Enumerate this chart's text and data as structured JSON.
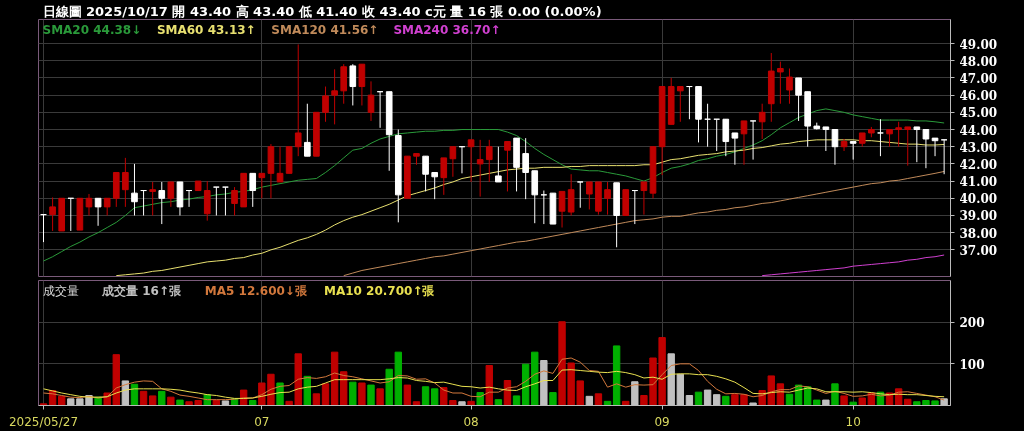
{
  "chart_data": [
    {
      "type": "candlestick",
      "title": "日線圖 2025/10/17 開 43.40 高 43.40 低 41.40 收 43.40 c元 量 16 張 0.00 (0.00%)",
      "categories": [
        "2025/05/27",
        null,
        null,
        null,
        null,
        null,
        null,
        null,
        null,
        null,
        null,
        null,
        null,
        null,
        null,
        null,
        null,
        null,
        null,
        null,
        null,
        null,
        null,
        null,
        "07",
        null,
        null,
        null,
        null,
        null,
        null,
        null,
        null,
        null,
        null,
        null,
        null,
        null,
        null,
        null,
        null,
        null,
        null,
        null,
        null,
        null,
        null,
        "08",
        null,
        null,
        null,
        null,
        null,
        null,
        null,
        null,
        null,
        null,
        null,
        null,
        null,
        null,
        null,
        null,
        null,
        null,
        null,
        null,
        "09",
        null,
        null,
        null,
        null,
        null,
        null,
        null,
        null,
        null,
        null,
        null,
        null,
        null,
        null,
        null,
        null,
        null,
        null,
        null,
        null,
        "10",
        null,
        null,
        null,
        null,
        null,
        null,
        null,
        null,
        null,
        null
      ],
      "ohlc": [
        [
          39.05,
          39.05,
          37.45,
          39.05
        ],
        [
          39.05,
          40.05,
          38.1,
          39.5
        ],
        [
          38.1,
          40.0,
          38.1,
          40.0
        ],
        [
          40.0,
          40.0,
          38.1,
          40.0
        ],
        [
          38.15,
          40.0,
          38.15,
          40.0
        ],
        [
          39.5,
          40.25,
          39.0,
          40.0
        ],
        [
          40.0,
          40.0,
          38.4,
          39.5
        ],
        [
          39.5,
          40.0,
          39.0,
          40.0
        ],
        [
          40.0,
          41.5,
          39.5,
          41.5
        ],
        [
          40.5,
          42.35,
          39.5,
          41.5
        ],
        [
          40.3,
          42.0,
          39.0,
          39.8
        ],
        [
          40.45,
          40.45,
          39.0,
          40.45
        ],
        [
          40.4,
          40.95,
          39.0,
          40.5
        ],
        [
          40.45,
          40.95,
          38.5,
          40.0
        ],
        [
          40.0,
          40.95,
          39.5,
          40.95
        ],
        [
          40.95,
          40.95,
          39.0,
          39.5
        ],
        [
          40.45,
          40.45,
          39.5,
          40.45
        ],
        [
          40.45,
          41.0,
          40.45,
          41.0
        ],
        [
          39.1,
          41.0,
          38.7,
          40.45
        ],
        [
          40.65,
          40.65,
          39.0,
          40.65
        ],
        [
          40.65,
          40.65,
          39.0,
          40.65
        ],
        [
          39.7,
          40.65,
          39.0,
          40.45
        ],
        [
          39.5,
          41.45,
          39.5,
          41.45
        ],
        [
          41.45,
          41.45,
          39.5,
          40.45
        ],
        [
          41.2,
          41.45,
          40.0,
          41.45
        ],
        [
          41.45,
          43.15,
          40.0,
          43.0
        ],
        [
          40.95,
          43.0,
          40.95,
          41.45
        ],
        [
          41.45,
          43.0,
          41.45,
          43.0
        ],
        [
          43.0,
          48.95,
          42.45,
          43.8
        ],
        [
          43.25,
          45.5,
          42.45,
          42.45
        ],
        [
          42.45,
          45.0,
          42.45,
          45.0
        ],
        [
          45.0,
          46.5,
          44.45,
          45.95
        ],
        [
          46.0,
          47.5,
          44.3,
          46.25
        ],
        [
          46.25,
          47.8,
          45.5,
          47.65
        ],
        [
          47.7,
          47.8,
          45.4,
          46.5
        ],
        [
          46.5,
          47.8,
          45.4,
          47.8
        ],
        [
          45.0,
          46.8,
          44.5,
          46.0
        ],
        [
          46.2,
          46.2,
          44.1,
          46.2
        ],
        [
          46.2,
          46.2,
          41.6,
          43.7
        ],
        [
          43.65,
          44.0,
          38.6,
          40.2
        ],
        [
          40.0,
          42.45,
          40.0,
          42.45
        ],
        [
          42.45,
          42.6,
          41.95,
          42.6
        ],
        [
          42.45,
          42.45,
          40.4,
          41.4
        ],
        [
          41.5,
          41.5,
          39.95,
          41.25
        ],
        [
          41.2,
          42.35,
          40.2,
          42.35
        ],
        [
          42.3,
          43.0,
          41.25,
          43.0
        ],
        [
          43.0,
          43.0,
          41.45,
          43.0
        ],
        [
          43.0,
          43.4,
          40.95,
          43.4
        ],
        [
          42.0,
          43.4,
          40.1,
          42.25
        ],
        [
          42.25,
          43.4,
          40.95,
          43.0
        ],
        [
          41.3,
          43.0,
          40.95,
          40.95
        ],
        [
          42.8,
          43.3,
          40.4,
          43.3
        ],
        [
          43.5,
          43.5,
          40.4,
          41.8
        ],
        [
          42.6,
          43.5,
          39.95,
          41.5
        ],
        [
          41.6,
          41.6,
          38.55,
          40.2
        ],
        [
          40.2,
          40.45,
          38.5,
          40.2
        ],
        [
          40.3,
          40.3,
          38.5,
          38.5
        ],
        [
          39.25,
          40.4,
          38.3,
          40.4
        ],
        [
          39.2,
          41.4,
          39.0,
          40.5
        ],
        [
          40.95,
          40.95,
          39.45,
          40.95
        ],
        [
          40.25,
          40.95,
          39.35,
          40.95
        ],
        [
          39.25,
          40.95,
          39.05,
          40.95
        ],
        [
          40.0,
          40.95,
          39.05,
          40.5
        ],
        [
          40.9,
          40.9,
          37.15,
          39.0
        ],
        [
          39.0,
          40.5,
          39.0,
          40.5
        ],
        [
          40.45,
          40.45,
          38.5,
          40.45
        ],
        [
          40.45,
          40.95,
          39.05,
          40.95
        ],
        [
          40.3,
          43.0,
          40.0,
          43.0
        ],
        [
          43.0,
          46.5,
          41.35,
          46.5
        ],
        [
          44.3,
          47.0,
          44.3,
          46.5
        ],
        [
          46.25,
          46.5,
          44.45,
          46.5
        ],
        [
          46.5,
          46.5,
          44.6,
          46.5
        ],
        [
          46.5,
          46.5,
          43.25,
          44.6
        ],
        [
          44.6,
          45.5,
          43.0,
          44.6
        ],
        [
          44.6,
          44.6,
          42.75,
          44.6
        ],
        [
          44.6,
          44.6,
          42.45,
          43.3
        ],
        [
          43.8,
          43.8,
          41.95,
          43.5
        ],
        [
          43.75,
          44.5,
          41.95,
          44.5
        ],
        [
          44.5,
          44.5,
          42.25,
          44.5
        ],
        [
          44.45,
          45.5,
          43.45,
          45.0
        ],
        [
          45.5,
          48.45,
          44.45,
          47.4
        ],
        [
          47.35,
          47.95,
          45.5,
          47.55
        ],
        [
          46.3,
          47.55,
          45.5,
          47.05
        ],
        [
          47.0,
          47.0,
          44.5,
          46.0
        ],
        [
          46.2,
          46.2,
          43.0,
          44.2
        ],
        [
          44.2,
          44.4,
          44.0,
          44.05
        ],
        [
          44.15,
          44.15,
          42.75,
          44.0
        ],
        [
          44.0,
          44.0,
          41.95,
          43.0
        ],
        [
          43.0,
          43.45,
          42.75,
          43.3
        ],
        [
          43.3,
          43.3,
          42.25,
          43.2
        ],
        [
          43.2,
          43.8,
          43.0,
          43.8
        ],
        [
          43.8,
          44.15,
          43.55,
          44.0
        ],
        [
          43.8,
          44.6,
          42.45,
          43.8
        ],
        [
          43.75,
          44.0,
          43.0,
          44.0
        ],
        [
          44.0,
          44.45,
          43.0,
          44.1
        ],
        [
          44.0,
          44.15,
          41.9,
          44.15
        ],
        [
          44.15,
          44.15,
          42.1,
          44.0
        ],
        [
          44.0,
          44.0,
          41.75,
          43.45
        ],
        [
          43.5,
          43.5,
          42.45,
          43.35
        ],
        [
          43.4,
          43.4,
          41.4,
          43.4
        ]
      ],
      "colors": [
        "#ffffff",
        "#c00000",
        "#c00000",
        "#ffffff",
        "#c00000",
        "#c00000",
        "#ffffff",
        "#c00000",
        "#c00000",
        "#c00000",
        "#ffffff",
        "#ffffff",
        "#c00000",
        "#ffffff",
        "#c00000",
        "#ffffff",
        "#ffffff",
        "#c00000",
        "#c00000",
        "#ffffff",
        "#ffffff",
        "#c00000",
        "#c00000",
        "#ffffff",
        "#c00000",
        "#c00000",
        "#c00000",
        "#c00000",
        "#c00000",
        "#ffffff",
        "#c00000",
        "#c00000",
        "#c00000",
        "#c00000",
        "#ffffff",
        "#c00000",
        "#c00000",
        "#ffffff",
        "#ffffff",
        "#ffffff",
        "#c00000",
        "#c00000",
        "#ffffff",
        "#ffffff",
        "#c00000",
        "#c00000",
        "#ffffff",
        "#c00000",
        "#c00000",
        "#c00000",
        "#ffffff",
        "#c00000",
        "#ffffff",
        "#ffffff",
        "#ffffff",
        "#ffffff",
        "#ffffff",
        "#c00000",
        "#c00000",
        "#ffffff",
        "#c00000",
        "#c00000",
        "#c00000",
        "#ffffff",
        "#c00000",
        "#ffffff",
        "#c00000",
        "#c00000",
        "#c00000",
        "#c00000",
        "#c00000",
        "#ffffff",
        "#ffffff",
        "#ffffff",
        "#ffffff",
        "#ffffff",
        "#ffffff",
        "#c00000",
        "#ffffff",
        "#c00000",
        "#c00000",
        "#c00000",
        "#c00000",
        "#ffffff",
        "#ffffff",
        "#ffffff",
        "#ffffff",
        "#ffffff",
        "#c00000",
        "#ffffff",
        "#c00000",
        "#c00000",
        "#ffffff",
        "#c00000",
        "#c00000",
        "#c00000",
        "#ffffff",
        "#ffffff",
        "#ffffff",
        "#ffffff"
      ],
      "series": [
        {
          "name": "SMA20 44.38↓",
          "type": "line",
          "color": "#2a9a3a",
          "values": [
            36.35,
            36.6,
            36.9,
            37.2,
            37.45,
            37.75,
            38.0,
            38.3,
            38.6,
            39.0,
            39.45,
            39.55,
            39.65,
            39.75,
            39.8,
            39.9,
            39.95,
            40.05,
            40.1,
            40.2,
            40.25,
            40.35,
            40.4,
            40.5,
            40.65,
            40.75,
            40.85,
            40.95,
            41.05,
            41.1,
            41.15,
            41.5,
            41.9,
            42.35,
            42.8,
            42.9,
            43.2,
            43.45,
            43.6,
            43.75,
            43.8,
            43.85,
            43.9,
            43.9,
            43.95,
            43.95,
            44.0,
            44.0,
            44.0,
            44.0,
            44.0,
            43.85,
            43.65,
            43.3,
            42.9,
            42.55,
            42.25,
            41.95,
            41.7,
            41.65,
            41.6,
            41.6,
            41.5,
            41.4,
            41.3,
            41.15,
            41.0,
            41.2,
            41.5,
            41.75,
            41.85,
            42.0,
            42.2,
            42.3,
            42.45,
            42.55,
            42.7,
            42.9,
            43.1,
            43.35,
            43.7,
            44.1,
            44.4,
            44.7,
            44.9,
            45.1,
            45.2,
            45.1,
            45.0,
            44.85,
            44.75,
            44.65,
            44.55,
            44.55,
            44.55,
            44.55,
            44.5,
            44.5,
            44.45,
            44.38
          ]
        },
        {
          "name": "SMA60 43.13↑",
          "type": "line",
          "color": "#e8e070",
          "values": [
            null,
            null,
            null,
            null,
            null,
            null,
            null,
            null,
            35.5,
            35.55,
            35.6,
            35.65,
            35.75,
            35.8,
            35.9,
            36.0,
            36.1,
            36.2,
            36.3,
            36.35,
            36.4,
            36.5,
            36.55,
            36.7,
            36.8,
            37.0,
            37.15,
            37.35,
            37.55,
            37.7,
            37.9,
            38.15,
            38.45,
            38.7,
            38.9,
            39.05,
            39.25,
            39.45,
            39.65,
            39.9,
            40.15,
            40.3,
            40.45,
            40.6,
            40.8,
            40.95,
            41.15,
            41.25,
            41.35,
            41.45,
            41.55,
            41.65,
            41.7,
            41.75,
            41.75,
            41.8,
            41.8,
            41.8,
            41.85,
            41.85,
            41.9,
            41.9,
            41.9,
            41.9,
            41.9,
            41.9,
            41.95,
            41.95,
            42.1,
            42.25,
            42.3,
            42.4,
            42.5,
            42.55,
            42.6,
            42.7,
            42.75,
            42.8,
            42.9,
            42.95,
            43.05,
            43.15,
            43.2,
            43.3,
            43.35,
            43.4,
            43.4,
            43.4,
            43.4,
            43.4,
            43.35,
            43.35,
            43.3,
            43.25,
            43.2,
            43.15,
            43.15,
            43.1,
            43.1,
            43.13
          ]
        },
        {
          "name": "SMA120 41.56↑",
          "type": "line",
          "color": "#c08a5a",
          "values": [
            null,
            null,
            null,
            null,
            null,
            null,
            null,
            null,
            null,
            null,
            null,
            null,
            null,
            null,
            null,
            null,
            null,
            null,
            null,
            null,
            null,
            null,
            null,
            null,
            null,
            null,
            null,
            null,
            null,
            null,
            null,
            null,
            null,
            35.5,
            35.65,
            35.8,
            35.9,
            36.0,
            36.1,
            36.2,
            36.3,
            36.4,
            36.5,
            36.6,
            36.65,
            36.75,
            36.85,
            36.95,
            37.05,
            37.15,
            37.25,
            37.35,
            37.45,
            37.5,
            37.6,
            37.7,
            37.8,
            37.9,
            38.0,
            38.1,
            38.2,
            38.3,
            38.4,
            38.5,
            38.6,
            38.7,
            38.75,
            38.8,
            38.9,
            38.95,
            38.95,
            39.05,
            39.15,
            39.2,
            39.3,
            39.35,
            39.45,
            39.5,
            39.6,
            39.7,
            39.75,
            39.85,
            39.95,
            40.05,
            40.15,
            40.25,
            40.35,
            40.45,
            40.55,
            40.65,
            40.75,
            40.85,
            40.9,
            41.0,
            41.05,
            41.15,
            41.25,
            41.35,
            41.45,
            41.56
          ]
        },
        {
          "name": "SMA240 36.70↑",
          "type": "line",
          "color": "#d040d0",
          "values": [
            null,
            null,
            null,
            null,
            null,
            null,
            null,
            null,
            null,
            null,
            null,
            null,
            null,
            null,
            null,
            null,
            null,
            null,
            null,
            null,
            null,
            null,
            null,
            null,
            null,
            null,
            null,
            null,
            null,
            null,
            null,
            null,
            null,
            null,
            null,
            null,
            null,
            null,
            null,
            null,
            null,
            null,
            null,
            null,
            null,
            null,
            null,
            null,
            null,
            null,
            null,
            null,
            null,
            null,
            null,
            null,
            null,
            null,
            null,
            null,
            null,
            null,
            null,
            null,
            null,
            null,
            null,
            null,
            null,
            null,
            null,
            null,
            null,
            null,
            null,
            null,
            null,
            null,
            null,
            35.5,
            35.55,
            35.6,
            35.65,
            35.7,
            35.75,
            35.8,
            35.85,
            35.9,
            35.95,
            36.05,
            36.1,
            36.15,
            36.2,
            36.25,
            36.3,
            36.4,
            36.45,
            36.55,
            36.6,
            36.7
          ]
        }
      ],
      "ylim": [
        35.45,
        50.4
      ],
      "yticks": [
        {
          "value": 37,
          "label": "37.00"
        },
        {
          "value": 38,
          "label": "38.00"
        },
        {
          "value": 39,
          "label": "39.00"
        },
        {
          "value": 40,
          "label": "40.00"
        },
        {
          "value": 41,
          "label": "41.00"
        },
        {
          "value": 42,
          "label": "42.00"
        },
        {
          "value": 43,
          "label": "43.00"
        },
        {
          "value": 44,
          "label": "44.00"
        },
        {
          "value": 45,
          "label": "45.00"
        },
        {
          "value": 46,
          "label": "46.00"
        },
        {
          "value": 47,
          "label": "47.00"
        },
        {
          "value": 48,
          "label": "48.00"
        },
        {
          "value": 49,
          "label": "49.00"
        }
      ],
      "grid": true,
      "legend": "top left",
      "tick_labels": "y"
    },
    {
      "type": "bar",
      "title": "成交量",
      "categories": [
        "2025/05/27",
        null,
        null,
        null,
        null,
        null,
        null,
        null,
        null,
        null,
        null,
        null,
        null,
        null,
        null,
        null,
        null,
        null,
        null,
        null,
        null,
        null,
        null,
        null,
        "07",
        null,
        null,
        null,
        null,
        null,
        null,
        null,
        null,
        null,
        null,
        null,
        null,
        null,
        null,
        null,
        null,
        null,
        null,
        null,
        null,
        null,
        null,
        "08",
        null,
        null,
        null,
        null,
        null,
        null,
        null,
        null,
        null,
        null,
        null,
        null,
        null,
        null,
        null,
        null,
        null,
        null,
        null,
        null,
        "09",
        null,
        null,
        null,
        null,
        null,
        null,
        null,
        null,
        null,
        null,
        null,
        null,
        null,
        null,
        null,
        null,
        null,
        null,
        null,
        null,
        "10",
        null,
        null,
        null,
        null,
        null,
        null,
        null,
        null,
        null,
        null
      ],
      "series": [
        {
          "name": "成交量 16↑張",
          "type": "bar",
          "values": [
            4,
            36,
            22,
            16,
            16,
            24,
            20,
            30,
            122,
            59,
            51,
            34,
            23,
            34,
            20,
            13,
            9,
            12,
            26,
            12,
            11,
            16,
            37,
            12,
            54,
            75,
            54,
            10,
            124,
            70,
            28,
            52,
            128,
            81,
            56,
            54,
            49,
            40,
            87,
            128,
            49,
            9,
            45,
            40,
            43,
            12,
            9,
            10,
            31,
            96,
            14,
            60,
            23,
            99,
            128,
            108,
            31,
            201,
            102,
            59,
            22,
            28,
            10,
            143,
            10,
            57,
            24,
            114,
            163,
            124,
            75,
            24,
            32,
            37,
            26,
            22,
            26,
            26,
            6,
            36,
            71,
            52,
            27,
            49,
            45,
            13,
            13,
            52,
            23,
            8,
            18,
            30,
            32,
            30,
            40,
            15,
            9,
            12,
            11,
            16
          ],
          "colors": [
            "#c00000",
            "#c00000",
            "#c00000",
            "#c0c0c0",
            "#c0c0c0",
            "#c0c0c0",
            "#00b000",
            "#c00000",
            "#c00000",
            "#c0c0c0",
            "#00b000",
            "#c00000",
            "#c00000",
            "#00b000",
            "#c00000",
            "#00b000",
            "#c00000",
            "#c00000",
            "#00b000",
            "#c00000",
            "#c0c0c0",
            "#00b000",
            "#c00000",
            "#00b000",
            "#c00000",
            "#c00000",
            "#00b000",
            "#c00000",
            "#c00000",
            "#00b000",
            "#c00000",
            "#c00000",
            "#c00000",
            "#c00000",
            "#00b000",
            "#c00000",
            "#00b000",
            "#c00000",
            "#00b000",
            "#00b000",
            "#c00000",
            "#c00000",
            "#00b000",
            "#00b000",
            "#c00000",
            "#c00000",
            "#c0c0c0",
            "#c00000",
            "#00b000",
            "#c00000",
            "#00b000",
            "#c00000",
            "#00b000",
            "#00b000",
            "#00b000",
            "#c0c0c0",
            "#00b000",
            "#c00000",
            "#c00000",
            "#c00000",
            "#c0c0c0",
            "#c00000",
            "#00b000",
            "#00b000",
            "#c00000",
            "#c0c0c0",
            "#c00000",
            "#c00000",
            "#c00000",
            "#c0c0c0",
            "#c0c0c0",
            "#c0c0c0",
            "#00b000",
            "#c0c0c0",
            "#c0c0c0",
            "#00b000",
            "#c00000",
            "#c00000",
            "#c0c0c0",
            "#c00000",
            "#c00000",
            "#c00000",
            "#00b000",
            "#00b000",
            "#00b000",
            "#00b000",
            "#c0c0c0",
            "#00b000",
            "#c00000",
            "#00b000",
            "#c00000",
            "#c00000",
            "#00b000",
            "#c00000",
            "#c00000",
            "#c00000",
            "#00b000",
            "#00b000",
            "#00b000",
            "#c0c0c0"
          ]
        },
        {
          "name": "MA5 12.600↓張",
          "type": "line",
          "color": "#d2783c",
          "values": [
            30,
            28,
            24,
            20,
            19,
            22,
            18,
            21,
            42,
            50,
            56,
            59,
            58,
            40,
            34,
            25,
            22,
            18,
            14,
            14,
            14,
            15,
            18,
            18,
            26,
            39,
            46,
            48,
            63,
            67,
            65,
            69,
            78,
            72,
            69,
            64,
            59,
            54,
            57,
            72,
            71,
            63,
            64,
            54,
            37,
            30,
            30,
            22,
            21,
            32,
            32,
            42,
            45,
            58,
            75,
            83,
            77,
            111,
            114,
            104,
            84,
            82,
            44,
            52,
            44,
            50,
            49,
            50,
            74,
            96,
            100,
            100,
            84,
            58,
            39,
            28,
            29,
            27,
            21,
            24,
            33,
            38,
            38,
            47,
            45,
            37,
            29,
            34,
            29,
            22,
            23,
            27,
            23,
            25,
            32,
            33,
            29,
            25,
            21,
            13
          ]
        },
        {
          "name": "MA10 20.700↑張",
          "type": "line",
          "color": "#e8e050",
          "values": [
            40,
            35,
            30,
            26,
            22,
            20,
            20,
            21,
            30,
            37,
            40,
            40,
            40,
            40,
            39,
            37,
            33,
            30,
            26,
            24,
            20,
            17,
            17,
            18,
            22,
            27,
            31,
            32,
            40,
            44,
            46,
            54,
            62,
            62,
            62,
            62,
            62,
            62,
            64,
            67,
            66,
            60,
            58,
            55,
            56,
            51,
            46,
            45,
            42,
            44,
            40,
            37,
            36,
            45,
            52,
            60,
            60,
            85,
            86,
            84,
            82,
            80,
            79,
            82,
            79,
            74,
            66,
            68,
            63,
            75,
            76,
            76,
            74,
            74,
            70,
            64,
            56,
            43,
            29,
            28,
            31,
            33,
            32,
            37,
            42,
            40,
            33,
            33,
            33,
            32,
            33,
            31,
            28,
            26,
            27,
            26,
            26,
            24,
            22,
            21
          ]
        }
      ],
      "ylim": [
        0,
        300
      ],
      "yticks": [
        100,
        200
      ],
      "grid": true,
      "legend": "top left"
    }
  ]
}
